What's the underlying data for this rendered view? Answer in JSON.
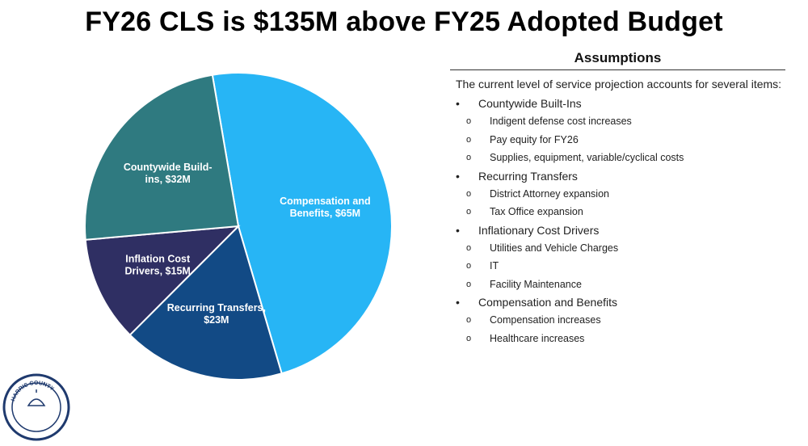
{
  "title": "FY26 CLS is $135M above FY25 Adopted Budget",
  "chart_data": {
    "type": "pie",
    "title": "",
    "unit": "$M",
    "slices": [
      {
        "label_lines": [
          "Compensation and",
          "Benefits, $65M"
        ],
        "value": 65,
        "color": "#27B5F5"
      },
      {
        "label_lines": [
          "Recurring Transfers,",
          "$23M"
        ],
        "value": 23,
        "color": "#124A85"
      },
      {
        "label_lines": [
          "Inflation Cost",
          "Drivers, $15M"
        ],
        "value": 15,
        "color": "#2F2F63"
      },
      {
        "label_lines": [
          "Countywide Build-",
          "ins, $32M"
        ],
        "value": 32,
        "color": "#2F7A80"
      }
    ]
  },
  "assumptions": {
    "title": "Assumptions",
    "intro": "The current level of service projection accounts for several items:",
    "bullet_symbol": "•",
    "sub_bullet_symbol": "o",
    "items": [
      {
        "label": "Countywide Built-Ins",
        "subs": [
          "Indigent defense cost increases",
          "Pay equity for FY26",
          "Supplies, equipment, variable/cyclical costs"
        ]
      },
      {
        "label": "Recurring Transfers",
        "subs": [
          "District Attorney expansion",
          "Tax Office expansion"
        ]
      },
      {
        "label": "Inflationary Cost Drivers",
        "subs": [
          "Utilities and Vehicle Charges",
          "IT",
          "Facility Maintenance"
        ]
      },
      {
        "label": "Compensation and Benefits",
        "subs": [
          "Compensation increases",
          "Healthcare increases"
        ]
      }
    ]
  },
  "logo": {
    "text": "HARRIS COUNTY",
    "color": "#1F3A6E"
  }
}
